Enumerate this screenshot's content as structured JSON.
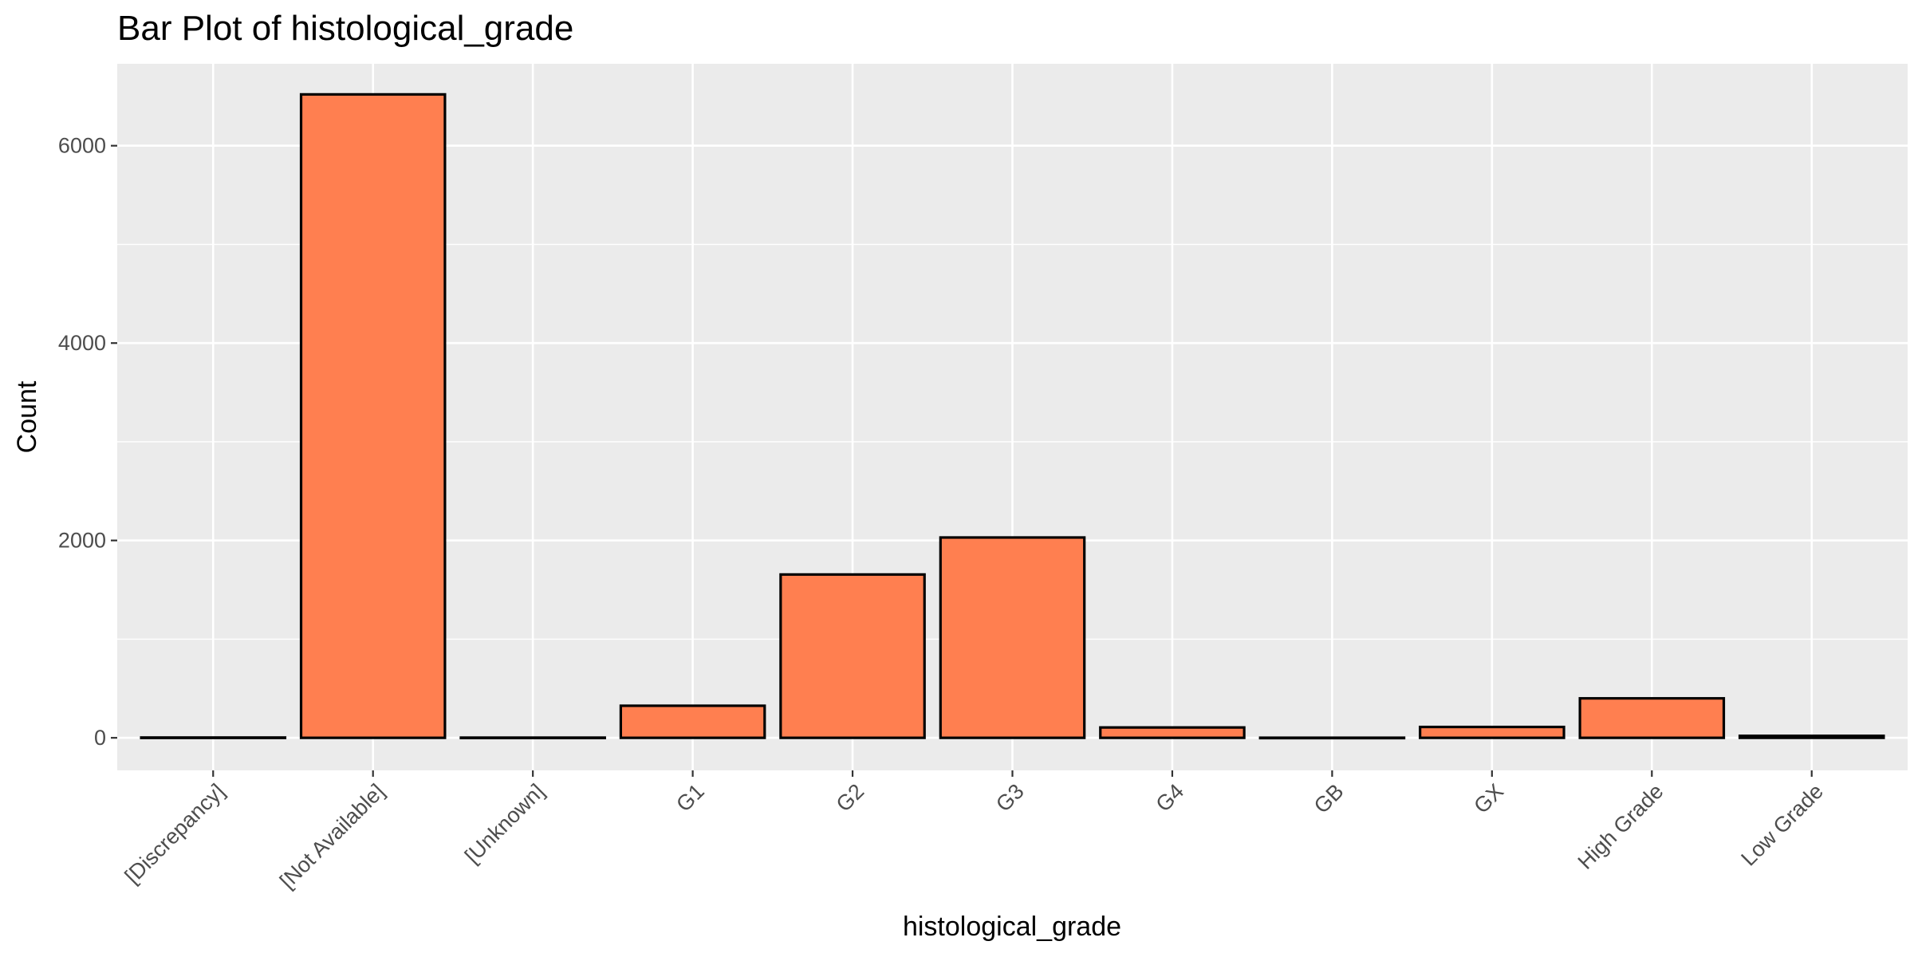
{
  "chart_data": {
    "type": "bar",
    "title": "Bar Plot of histological_grade",
    "xlabel": "histological_grade",
    "ylabel": "Count",
    "categories": [
      "[Discrepancy]",
      "[Not Available]",
      "[Unknown]",
      "G1",
      "G2",
      "G3",
      "G4",
      "GB",
      "GX",
      "High Grade",
      "Low Grade"
    ],
    "values": [
      3,
      6520,
      2,
      325,
      1655,
      2030,
      105,
      1,
      110,
      400,
      20
    ],
    "ylim": [
      -330,
      6830
    ],
    "yticks": [
      0,
      2000,
      4000,
      6000
    ],
    "grid": true,
    "legend": "none",
    "bar_fill": "#ff7f50",
    "bar_stroke": "#000000",
    "panel_background": "#ebebeb",
    "grid_color": "#ffffff"
  }
}
